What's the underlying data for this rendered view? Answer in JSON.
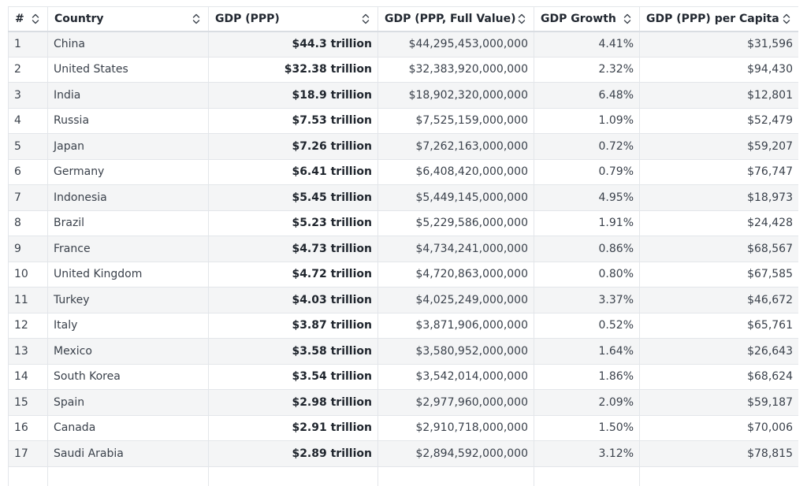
{
  "table": {
    "headers": {
      "rank": "#",
      "country": "Country",
      "gdp": "GDP (PPP)",
      "gdp_full": "GDP (PPP, Full Value)",
      "growth": "GDP Growth",
      "per_capita": "GDP (PPP) per Capita"
    },
    "rows": [
      {
        "rank": "1",
        "country": "China",
        "gdp": "$44.3 trillion",
        "gdp_full": "$44,295,453,000,000",
        "growth": "4.41%",
        "per_capita": "$31,596"
      },
      {
        "rank": "2",
        "country": "United States",
        "gdp": "$32.38 trillion",
        "gdp_full": "$32,383,920,000,000",
        "growth": "2.32%",
        "per_capita": "$94,430"
      },
      {
        "rank": "3",
        "country": "India",
        "gdp": "$18.9 trillion",
        "gdp_full": "$18,902,320,000,000",
        "growth": "6.48%",
        "per_capita": "$12,801"
      },
      {
        "rank": "4",
        "country": "Russia",
        "gdp": "$7.53 trillion",
        "gdp_full": "$7,525,159,000,000",
        "growth": "1.09%",
        "per_capita": "$52,479"
      },
      {
        "rank": "5",
        "country": "Japan",
        "gdp": "$7.26 trillion",
        "gdp_full": "$7,262,163,000,000",
        "growth": "0.72%",
        "per_capita": "$59,207"
      },
      {
        "rank": "6",
        "country": "Germany",
        "gdp": "$6.41 trillion",
        "gdp_full": "$6,408,420,000,000",
        "growth": "0.79%",
        "per_capita": "$76,747"
      },
      {
        "rank": "7",
        "country": "Indonesia",
        "gdp": "$5.45 trillion",
        "gdp_full": "$5,449,145,000,000",
        "growth": "4.95%",
        "per_capita": "$18,973"
      },
      {
        "rank": "8",
        "country": "Brazil",
        "gdp": "$5.23 trillion",
        "gdp_full": "$5,229,586,000,000",
        "growth": "1.91%",
        "per_capita": "$24,428"
      },
      {
        "rank": "9",
        "country": "France",
        "gdp": "$4.73 trillion",
        "gdp_full": "$4,734,241,000,000",
        "growth": "0.86%",
        "per_capita": "$68,567"
      },
      {
        "rank": "10",
        "country": "United Kingdom",
        "gdp": "$4.72 trillion",
        "gdp_full": "$4,720,863,000,000",
        "growth": "0.80%",
        "per_capita": "$67,585"
      },
      {
        "rank": "11",
        "country": "Turkey",
        "gdp": "$4.03 trillion",
        "gdp_full": "$4,025,249,000,000",
        "growth": "3.37%",
        "per_capita": "$46,672"
      },
      {
        "rank": "12",
        "country": "Italy",
        "gdp": "$3.87 trillion",
        "gdp_full": "$3,871,906,000,000",
        "growth": "0.52%",
        "per_capita": "$65,761"
      },
      {
        "rank": "13",
        "country": "Mexico",
        "gdp": "$3.58 trillion",
        "gdp_full": "$3,580,952,000,000",
        "growth": "1.64%",
        "per_capita": "$26,643"
      },
      {
        "rank": "14",
        "country": "South Korea",
        "gdp": "$3.54 trillion",
        "gdp_full": "$3,542,014,000,000",
        "growth": "1.86%",
        "per_capita": "$68,624"
      },
      {
        "rank": "15",
        "country": "Spain",
        "gdp": "$2.98 trillion",
        "gdp_full": "$2,977,960,000,000",
        "growth": "2.09%",
        "per_capita": "$59,187"
      },
      {
        "rank": "16",
        "country": "Canada",
        "gdp": "$2.91 trillion",
        "gdp_full": "$2,910,718,000,000",
        "growth": "1.50%",
        "per_capita": "$70,006"
      },
      {
        "rank": "17",
        "country": "Saudi Arabia",
        "gdp": "$2.89 trillion",
        "gdp_full": "$2,894,592,000,000",
        "growth": "3.12%",
        "per_capita": "$78,815"
      },
      {
        "rank": "",
        "country": "",
        "gdp": "",
        "gdp_full": "",
        "growth": "",
        "per_capita": ""
      }
    ]
  },
  "icons": {
    "sort": "sort-up-down-icon"
  }
}
